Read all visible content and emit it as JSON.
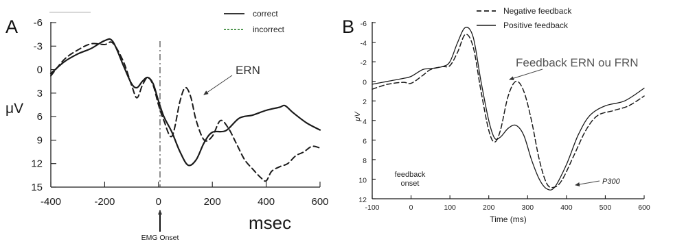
{
  "chart_data": [
    {
      "panel_label": "A",
      "type": "line",
      "ylabel": "μV",
      "xlabel": "msec",
      "xlim": [
        -400,
        600
      ],
      "ylim": [
        15,
        -6
      ],
      "y_inverted": true,
      "x_ticks": [
        -400,
        -200,
        0,
        200,
        400,
        600
      ],
      "y_ticks": [
        -6,
        -3,
        0,
        3,
        6,
        9,
        12,
        15
      ],
      "series": [
        {
          "name": "correct",
          "style": "solid",
          "points": [
            [
              -400,
              0.5
            ],
            [
              -350,
              -1.0
            ],
            [
              -300,
              -2.0
            ],
            [
              -250,
              -2.7
            ],
            [
              -200,
              -3.7
            ],
            [
              -170,
              -3.6
            ],
            [
              -130,
              -0.5
            ],
            [
              -100,
              1.8
            ],
            [
              -80,
              2.3
            ],
            [
              -60,
              1.5
            ],
            [
              -40,
              1.0
            ],
            [
              -20,
              1.8
            ],
            [
              0,
              4.0
            ],
            [
              20,
              6.0
            ],
            [
              50,
              8.0
            ],
            [
              80,
              10.5
            ],
            [
              110,
              12.2
            ],
            [
              140,
              11.5
            ],
            [
              170,
              9.3
            ],
            [
              200,
              8.0
            ],
            [
              250,
              7.8
            ],
            [
              300,
              6.2
            ],
            [
              350,
              5.8
            ],
            [
              400,
              5.2
            ],
            [
              450,
              4.8
            ],
            [
              470,
              4.6
            ],
            [
              500,
              5.5
            ],
            [
              550,
              6.8
            ],
            [
              600,
              7.7
            ]
          ]
        },
        {
          "name": "incorrect",
          "style": "dashed",
          "points": [
            [
              -400,
              0.8
            ],
            [
              -350,
              -1.3
            ],
            [
              -300,
              -2.5
            ],
            [
              -250,
              -3.3
            ],
            [
              -200,
              -3.2
            ],
            [
              -170,
              -3.4
            ],
            [
              -130,
              -1.0
            ],
            [
              -100,
              2.0
            ],
            [
              -80,
              3.6
            ],
            [
              -60,
              2.0
            ],
            [
              -40,
              1.0
            ],
            [
              -20,
              2.0
            ],
            [
              0,
              4.5
            ],
            [
              20,
              6.5
            ],
            [
              50,
              8.5
            ],
            [
              80,
              4.0
            ],
            [
              100,
              2.3
            ],
            [
              120,
              3.5
            ],
            [
              140,
              6.5
            ],
            [
              170,
              9.0
            ],
            [
              200,
              8.5
            ],
            [
              230,
              6.5
            ],
            [
              260,
              7.5
            ],
            [
              290,
              9.5
            ],
            [
              320,
              11.5
            ],
            [
              350,
              12.7
            ],
            [
              380,
              13.8
            ],
            [
              400,
              14.2
            ],
            [
              420,
              13.0
            ],
            [
              450,
              12.4
            ],
            [
              480,
              12.0
            ],
            [
              510,
              11.0
            ],
            [
              540,
              10.5
            ],
            [
              570,
              9.8
            ],
            [
              600,
              10.0
            ]
          ]
        }
      ]
    },
    {
      "panel_label": "B",
      "type": "line",
      "ylabel": "μV",
      "xlabel": "Time (ms)",
      "xlim": [
        -100,
        600
      ],
      "ylim": [
        12,
        -6
      ],
      "y_inverted": true,
      "x_ticks": [
        -100,
        0,
        100,
        200,
        300,
        400,
        500,
        600
      ],
      "y_ticks": [
        -6,
        -4,
        -2,
        0,
        2,
        4,
        6,
        8,
        10,
        12
      ],
      "series": [
        {
          "name": "Negative feedback",
          "style": "dashed",
          "points": [
            [
              -100,
              0.8
            ],
            [
              -60,
              0.3
            ],
            [
              -20,
              0.1
            ],
            [
              0,
              0.2
            ],
            [
              30,
              -0.6
            ],
            [
              50,
              -1.2
            ],
            [
              80,
              -1.5
            ],
            [
              100,
              -1.6
            ],
            [
              120,
              -3.0
            ],
            [
              140,
              -4.8
            ],
            [
              160,
              -3.5
            ],
            [
              180,
              1.0
            ],
            [
              200,
              5.0
            ],
            [
              215,
              6.2
            ],
            [
              230,
              5.0
            ],
            [
              250,
              1.5
            ],
            [
              270,
              0.0
            ],
            [
              290,
              1.0
            ],
            [
              310,
              4.0
            ],
            [
              330,
              8.0
            ],
            [
              350,
              10.5
            ],
            [
              370,
              10.8
            ],
            [
              390,
              10.0
            ],
            [
              420,
              7.5
            ],
            [
              450,
              5.0
            ],
            [
              480,
              3.5
            ],
            [
              520,
              3.0
            ],
            [
              560,
              2.5
            ],
            [
              600,
              1.5
            ]
          ]
        },
        {
          "name": "Positive feedback",
          "style": "solid",
          "points": [
            [
              -100,
              0.3
            ],
            [
              -60,
              0.0
            ],
            [
              -20,
              -0.3
            ],
            [
              0,
              -0.5
            ],
            [
              30,
              -1.2
            ],
            [
              50,
              -1.3
            ],
            [
              80,
              -1.5
            ],
            [
              100,
              -2.0
            ],
            [
              120,
              -4.0
            ],
            [
              140,
              -5.5
            ],
            [
              160,
              -4.5
            ],
            [
              180,
              0.0
            ],
            [
              200,
              4.0
            ],
            [
              215,
              5.8
            ],
            [
              230,
              5.7
            ],
            [
              250,
              4.8
            ],
            [
              270,
              4.5
            ],
            [
              290,
              5.5
            ],
            [
              310,
              8.0
            ],
            [
              330,
              10.0
            ],
            [
              350,
              11.0
            ],
            [
              370,
              10.8
            ],
            [
              400,
              8.5
            ],
            [
              430,
              5.5
            ],
            [
              460,
              3.5
            ],
            [
              500,
              2.5
            ],
            [
              550,
              2.0
            ],
            [
              600,
              0.7
            ]
          ]
        }
      ]
    }
  ],
  "labels": {
    "ern": "ERN",
    "emg_onset": "EMG Onset",
    "feedback_ern": "Feedback ERN ou FRN",
    "feedback_onset_line1": "feedback",
    "feedback_onset_line2": "onset",
    "p300": "P300"
  },
  "colors": {
    "correct": "#1a1a1a",
    "incorrect": "#1a1a1a",
    "negative_feedback": "#1a1a1a",
    "positive_feedback": "#1a1a1a",
    "legend_incorrect_swatch": "#3a8a3a",
    "axis": "#1a1a1a",
    "text": "#1a1a1a"
  }
}
